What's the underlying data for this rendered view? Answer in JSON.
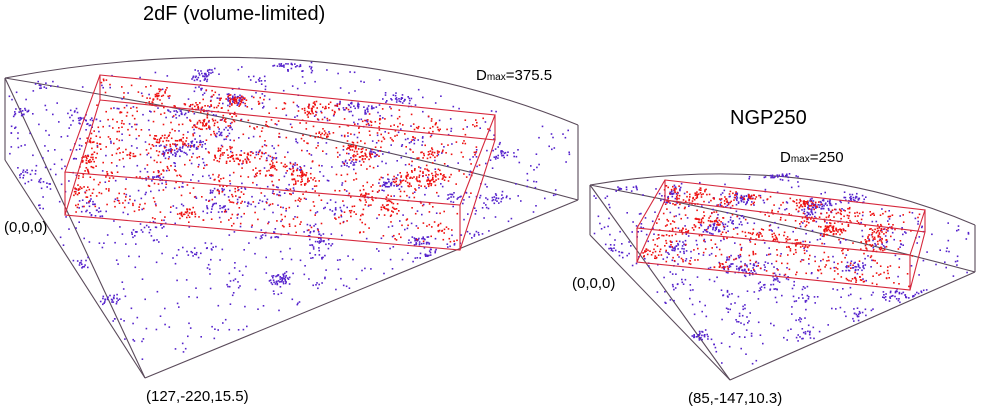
{
  "panels": [
    {
      "title": "2dF (volume-limited)",
      "dmax_symbol": "D",
      "dmax_subscript": "max",
      "dmax_value": "=375.5",
      "origin_label": "(0,0,0)",
      "corner_label": "(127,-220,15.5)"
    },
    {
      "title": "NGP250",
      "dmax_symbol": "D",
      "dmax_subscript": "max",
      "dmax_value": "=250",
      "origin_label": "(0,0,0)",
      "corner_label": "(85,-147,10.3)"
    }
  ],
  "colors": {
    "background": "#ffffff",
    "wedge_outline": "#5a4a5a",
    "box_outline": "#d6283c",
    "outer_points": "#5522cc",
    "inner_points": "#ee1111",
    "text": "#000000"
  }
}
